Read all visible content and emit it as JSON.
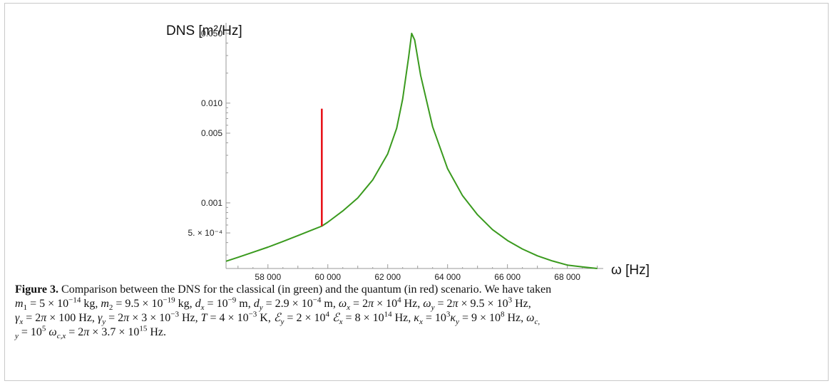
{
  "chart_data": {
    "type": "line",
    "title": "",
    "ylabel": "DNS [m²/Hz]",
    "xlabel": "ω [Hz]",
    "y_scale": "log",
    "xlim": [
      56600,
      69200
    ],
    "ylim": [
      0.00022,
      0.056
    ],
    "x_ticks": [
      58000,
      60000,
      62000,
      64000,
      66000,
      68000
    ],
    "x_tick_labels": [
      "58 000",
      "60 000",
      "62 000",
      "64 000",
      "66 000",
      "68 000"
    ],
    "y_ticks": [
      0.0005,
      0.001,
      0.005,
      0.01,
      0.05
    ],
    "y_tick_labels": [
      "5. × 10⁻⁴",
      "0.001",
      "0.005",
      "0.010",
      "0.050"
    ],
    "grid": false,
    "legend": "none",
    "series": [
      {
        "color": "#3a9a1e",
        "x": [
          56600,
          57000,
          57500,
          58000,
          58500,
          59000,
          59500,
          59800,
          60000,
          60500,
          61000,
          61500,
          62000,
          62300,
          62500,
          62700,
          62800,
          62900,
          63100,
          63500,
          64000,
          64500,
          65000,
          65500,
          66000,
          66500,
          67000,
          67500,
          68000,
          68500,
          69000
        ],
        "y": [
          0.00026,
          0.000285,
          0.00032,
          0.00036,
          0.00041,
          0.00047,
          0.00054,
          0.000585,
          0.00064,
          0.00083,
          0.00112,
          0.0017,
          0.0031,
          0.0056,
          0.011,
          0.029,
          0.05,
          0.043,
          0.019,
          0.0058,
          0.0022,
          0.00118,
          0.00076,
          0.00054,
          0.00042,
          0.000345,
          0.000295,
          0.000262,
          0.000238,
          0.000228,
          0.00022
        ]
      },
      {
        "color": "#e8141b",
        "x": [
          59800,
          59800
        ],
        "y": [
          0.000585,
          0.0088
        ]
      }
    ]
  },
  "caption": {
    "label": "Figure 3.",
    "text": "Comparison between the DNS for the classical (in green) and the quantum (in red) scenario. We have taken"
  }
}
